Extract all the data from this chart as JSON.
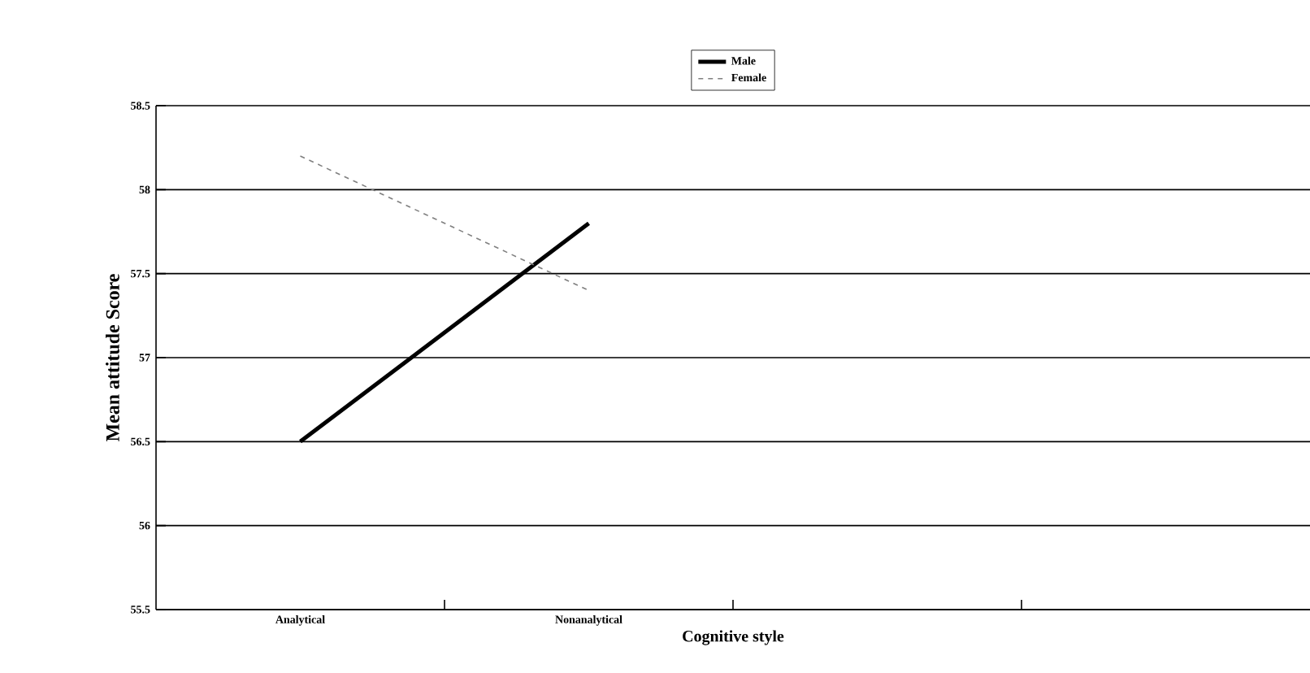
{
  "chart_data": {
    "type": "line",
    "xlabel": "Cognitive style",
    "ylabel": "Mean attitude Score",
    "categories": [
      "Analytical",
      "Nonanalytical",
      null,
      null
    ],
    "series": [
      {
        "name": "Male",
        "color": "#000000",
        "line_style": "solid",
        "values": [
          56.5,
          57.8,
          null,
          null
        ]
      },
      {
        "name": "Female",
        "color": "#808080",
        "line_style": "dashed",
        "values": [
          58.2,
          57.4,
          null,
          null
        ]
      }
    ],
    "ylim": [
      55.5,
      58.5
    ],
    "yticks": [
      55.5,
      56,
      56.5,
      57,
      57.5,
      58,
      58.5
    ],
    "grid": "y",
    "legend": "top",
    "marker": "none"
  }
}
